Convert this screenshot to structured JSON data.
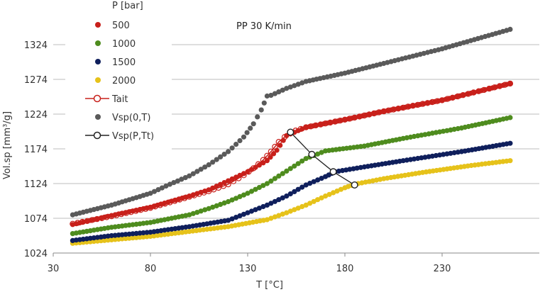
{
  "chart_data": {
    "type": "scatter",
    "title": "",
    "annotation": "PP 30 K/min",
    "xlabel": "T [°C]",
    "ylabel": "Vol.sp [mm³/g]",
    "xlim": [
      30,
      280
    ],
    "ylim": [
      1024,
      1374
    ],
    "x_ticks": [
      30,
      80,
      130,
      180,
      230
    ],
    "y_ticks": [
      1024,
      1074,
      1124,
      1174,
      1224,
      1274,
      1324
    ],
    "grid": "horizontal",
    "legend_title": "P [bar]",
    "legend_position": "top-left",
    "colors": {
      "p500": "#c8201b",
      "p1000": "#4e8c1e",
      "p1500": "#0f1f5c",
      "p2000": "#e6c21a",
      "vsp0": "#5a5a5a",
      "tait": "#c8201b",
      "transition": "#222222"
    },
    "series": [
      {
        "name": "500",
        "key": "p500",
        "style": "dots",
        "x": [
          40,
          60,
          80,
          100,
          110,
          120,
          130,
          140,
          145,
          150,
          160,
          180,
          200,
          230,
          265
        ],
        "y": [
          1065,
          1078,
          1090,
          1106,
          1115,
          1128,
          1141,
          1157,
          1172,
          1193,
          1205,
          1216,
          1228,
          1244,
          1268
        ]
      },
      {
        "name": "1000",
        "key": "p1000",
        "style": "dots",
        "x": [
          40,
          60,
          80,
          100,
          110,
          120,
          130,
          140,
          150,
          160,
          170,
          190,
          210,
          240,
          265
        ],
        "y": [
          1052,
          1061,
          1068,
          1079,
          1088,
          1098,
          1110,
          1124,
          1142,
          1160,
          1171,
          1178,
          1189,
          1204,
          1219
        ]
      },
      {
        "name": "1500",
        "key": "p1500",
        "style": "dots",
        "x": [
          40,
          60,
          80,
          100,
          120,
          130,
          140,
          150,
          160,
          170,
          175,
          190,
          210,
          240,
          265
        ],
        "y": [
          1042,
          1049,
          1054,
          1062,
          1071,
          1082,
          1093,
          1106,
          1122,
          1134,
          1141,
          1148,
          1157,
          1170,
          1182
        ]
      },
      {
        "name": "2000",
        "key": "p2000",
        "style": "dots",
        "x": [
          40,
          60,
          80,
          100,
          120,
          140,
          150,
          160,
          170,
          180,
          185,
          200,
          220,
          245,
          265
        ],
        "y": [
          1038,
          1043,
          1048,
          1055,
          1062,
          1072,
          1082,
          1093,
          1106,
          1118,
          1123,
          1131,
          1140,
          1150,
          1157
        ]
      },
      {
        "name": "Tait",
        "key": "tait",
        "style": "line-open",
        "x": [
          40,
          60,
          80,
          100,
          110,
          120,
          128,
          133,
          138,
          142,
          146,
          152,
          160,
          180,
          200,
          230,
          265
        ],
        "y": [
          1066,
          1077,
          1089,
          1105,
          1113,
          1123,
          1136,
          1146,
          1158,
          1170,
          1184,
          1198,
          1205,
          1216,
          1228,
          1244,
          1268
        ]
      },
      {
        "name": "Vsp(0,T)",
        "key": "vsp0",
        "style": "dots",
        "x": [
          40,
          60,
          80,
          90,
          100,
          110,
          120,
          128,
          133,
          137,
          140,
          142,
          150,
          160,
          180,
          200,
          230,
          265
        ],
        "y": [
          1079,
          1093,
          1110,
          1123,
          1135,
          1151,
          1170,
          1191,
          1210,
          1230,
          1250,
          1251,
          1261,
          1271,
          1283,
          1297,
          1318,
          1346
        ]
      },
      {
        "name": "Vsp(P,Tt)",
        "key": "transition",
        "style": "line-open",
        "x": [
          152,
          163,
          174,
          185
        ],
        "y": [
          1198,
          1166,
          1141,
          1122
        ]
      }
    ]
  }
}
